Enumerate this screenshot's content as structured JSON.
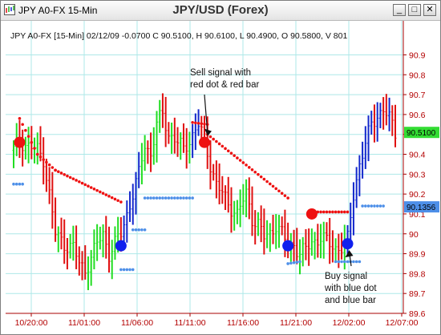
{
  "window": {
    "title": "JPY A0-FX 15-Min",
    "center_title": "JPY/USD (Forex)",
    "buttons": {
      "minimize": "_",
      "maximize": "□",
      "close": "✕"
    },
    "icons": {
      "app": "chart-app-icon"
    }
  },
  "chart_data": {
    "type": "candlestick-bar",
    "info_line": "JPY A0-FX [15-Min] 02/12/09  -0.0700 C 90.5100, H 90.6100, L 90.4900, O 90.5800, V 801",
    "yticks": [
      "90.9",
      "90.8",
      "90.7",
      "90.6",
      "90.5",
      "90.4",
      "90.3",
      "90.2",
      "90.1",
      "90",
      "89.9",
      "89.8",
      "89.7",
      "89.6"
    ],
    "ylim": [
      89.6,
      90.93
    ],
    "xticks": [
      "10/20:00",
      "11/01:00",
      "11/06:00",
      "11/11:00",
      "11/16:00",
      "11/21:00",
      "12/02:00",
      "12/07:00"
    ],
    "price_labels": [
      {
        "value": 90.51,
        "text": "90.5100",
        "color": "#33dd33"
      },
      {
        "value": 90.1356,
        "text": "90.1356",
        "color": "#4d8fe8"
      }
    ],
    "annotations": [
      {
        "text": [
          "Sell signal with",
          "red dot & red bar"
        ],
        "anchor": "sell"
      },
      {
        "text": [
          "Buy signal",
          "with blue dot",
          "and blue bar"
        ],
        "anchor": "buy"
      }
    ],
    "signals": [
      {
        "type": "sell",
        "bar": 2,
        "value": 90.46
      },
      {
        "type": "buy",
        "bar": 36,
        "value": 89.94
      },
      {
        "type": "sell",
        "bar": 64,
        "value": 90.46
      },
      {
        "type": "buy",
        "bar": 92,
        "value": 89.94
      },
      {
        "type": "sell",
        "bar": 100,
        "value": 90.1
      },
      {
        "type": "buy",
        "bar": 112,
        "value": 89.95
      }
    ],
    "colors": {
      "up": "#22dd22",
      "down": "#e01010",
      "blue": "#1428cc",
      "sell_dot": "#ee1111",
      "buy_dot": "#1020ee",
      "grid": "#aee8e8",
      "axis": "#aa0000"
    },
    "anchors": [
      [
        0,
        90.42
      ],
      [
        2,
        90.47
      ],
      [
        5,
        90.44
      ],
      [
        8,
        90.42
      ],
      [
        10,
        90.38
      ],
      [
        12,
        90.2
      ],
      [
        14,
        90.0
      ],
      [
        17,
        89.95
      ],
      [
        20,
        89.93
      ],
      [
        22,
        89.85
      ],
      [
        24,
        89.82
      ],
      [
        26,
        89.88
      ],
      [
        28,
        89.95
      ],
      [
        30,
        90.0
      ],
      [
        32,
        89.9
      ],
      [
        34,
        89.95
      ],
      [
        36,
        90.0
      ],
      [
        40,
        90.2
      ],
      [
        42,
        90.3
      ],
      [
        44,
        90.45
      ],
      [
        46,
        90.4
      ],
      [
        48,
        90.55
      ],
      [
        50,
        90.6
      ],
      [
        52,
        90.5
      ],
      [
        54,
        90.48
      ],
      [
        57,
        90.42
      ],
      [
        60,
        90.5
      ],
      [
        62,
        90.55
      ],
      [
        64,
        90.47
      ],
      [
        66,
        90.35
      ],
      [
        68,
        90.25
      ],
      [
        70,
        90.2
      ],
      [
        72,
        90.15
      ],
      [
        75,
        90.1
      ],
      [
        78,
        90.2
      ],
      [
        80,
        90.08
      ],
      [
        82,
        90.05
      ],
      [
        84,
        89.98
      ],
      [
        86,
        90.0
      ],
      [
        88,
        90.05
      ],
      [
        90,
        90.0
      ],
      [
        92,
        89.94
      ],
      [
        94,
        89.95
      ],
      [
        96,
        89.9
      ],
      [
        98,
        89.92
      ],
      [
        100,
        89.96
      ],
      [
        103,
        89.98
      ],
      [
        106,
        89.95
      ],
      [
        108,
        89.93
      ],
      [
        110,
        89.93
      ],
      [
        112,
        89.97
      ],
      [
        114,
        90.2
      ],
      [
        116,
        90.35
      ],
      [
        118,
        90.45
      ],
      [
        120,
        90.55
      ],
      [
        122,
        90.6
      ],
      [
        124,
        90.62
      ],
      [
        126,
        90.58
      ],
      [
        128,
        90.51
      ]
    ],
    "dots": [
      {
        "color": "#ee1111",
        "from": 2,
        "to": 8,
        "start": 90.58,
        "end": 90.4
      },
      {
        "color": "#ee1111",
        "from": 8,
        "to": 14,
        "start": 90.4,
        "end": 90.32
      },
      {
        "color": "#ee1111",
        "from": 14,
        "to": 36,
        "start": 90.32,
        "end": 90.16
      },
      {
        "color": "#ee1111",
        "from": 60,
        "to": 65,
        "start": 90.56,
        "end": 90.55
      },
      {
        "color": "#ee1111",
        "from": 65,
        "to": 92,
        "start": 90.5,
        "end": 90.18
      },
      {
        "color": "#ee1111",
        "from": 100,
        "to": 112,
        "start": 90.11,
        "end": 90.11
      },
      {
        "color": "#4d8fe8",
        "from": 0,
        "to": 3,
        "start": 90.25,
        "end": 90.25
      },
      {
        "color": "#4d8fe8",
        "from": 36,
        "to": 40,
        "start": 89.82,
        "end": 89.82
      },
      {
        "color": "#4d8fe8",
        "from": 40,
        "to": 44,
        "start": 90.02,
        "end": 90.02
      },
      {
        "color": "#4d8fe8",
        "from": 44,
        "to": 60,
        "start": 90.18,
        "end": 90.18
      },
      {
        "color": "#4d8fe8",
        "from": 92,
        "to": 96,
        "start": 89.85,
        "end": 89.86
      },
      {
        "color": "#4d8fe8",
        "from": 108,
        "to": 116,
        "start": 89.86,
        "end": 89.86
      },
      {
        "color": "#4d8fe8",
        "from": 117,
        "to": 124,
        "start": 90.14,
        "end": 90.14
      }
    ],
    "blue_segments": [
      [
        36,
        42
      ],
      [
        60,
        63
      ],
      [
        112,
        128
      ]
    ],
    "red_segments": [
      [
        10,
        36
      ],
      [
        64,
        92
      ]
    ],
    "bar_count": 129
  }
}
